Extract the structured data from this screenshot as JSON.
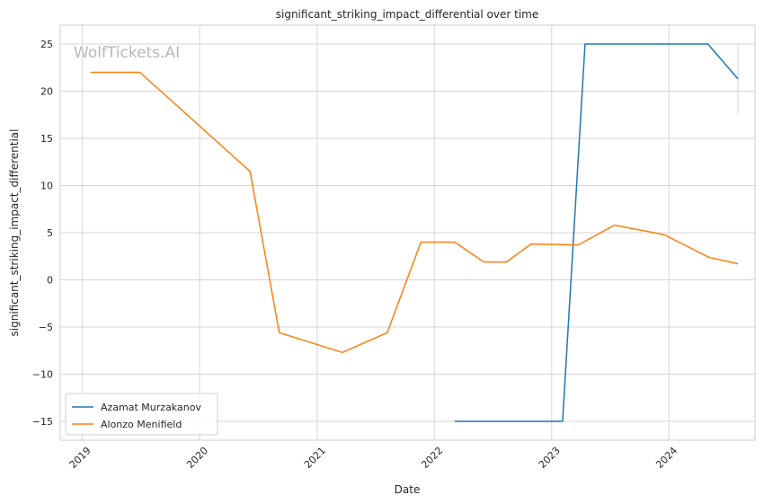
{
  "chart_data": {
    "type": "line",
    "title": "significant_striking_impact_differential over time",
    "xlabel": "Date",
    "ylabel": "significant_striking_impact_differential",
    "watermark": "WolfTickets.AI",
    "x_ticks": [
      "2019",
      "2020",
      "2021",
      "2022",
      "2023",
      "2024"
    ],
    "y_ticks": [
      -15,
      -10,
      -5,
      0,
      5,
      10,
      15,
      20,
      25
    ],
    "xlim": [
      "2018-10-24",
      "2024-09-25"
    ],
    "ylim": [
      -17,
      27
    ],
    "grid": true,
    "legend_position": "lower-left",
    "series": [
      {
        "name": "Azamat Murzakanov",
        "color": "#1f77b4",
        "points": [
          [
            "2022-03-05",
            -15
          ],
          [
            "2023-02-04",
            -15
          ],
          [
            "2023-04-15",
            25
          ],
          [
            "2024-05-01",
            25
          ],
          [
            "2024-08-03",
            21.3
          ]
        ],
        "band": {
          "x": "2024-08-03",
          "low": 17.5,
          "high": 25
        }
      },
      {
        "name": "Alonzo Menifield",
        "color": "#ff7f0e",
        "points": [
          [
            "2019-01-26",
            22
          ],
          [
            "2019-06-29",
            22
          ],
          [
            "2020-06-06",
            11.5
          ],
          [
            "2020-09-05",
            -5.6
          ],
          [
            "2021-03-20",
            -7.7
          ],
          [
            "2021-08-07",
            -5.6
          ],
          [
            "2021-11-20",
            4
          ],
          [
            "2022-03-05",
            4
          ],
          [
            "2022-06-04",
            1.9
          ],
          [
            "2022-08-13",
            1.9
          ],
          [
            "2022-10-29",
            3.8
          ],
          [
            "2023-03-25",
            3.7
          ],
          [
            "2023-07-15",
            5.8
          ],
          [
            "2023-12-16",
            4.8
          ],
          [
            "2024-05-04",
            2.4
          ],
          [
            "2024-08-03",
            1.7
          ]
        ]
      }
    ]
  }
}
